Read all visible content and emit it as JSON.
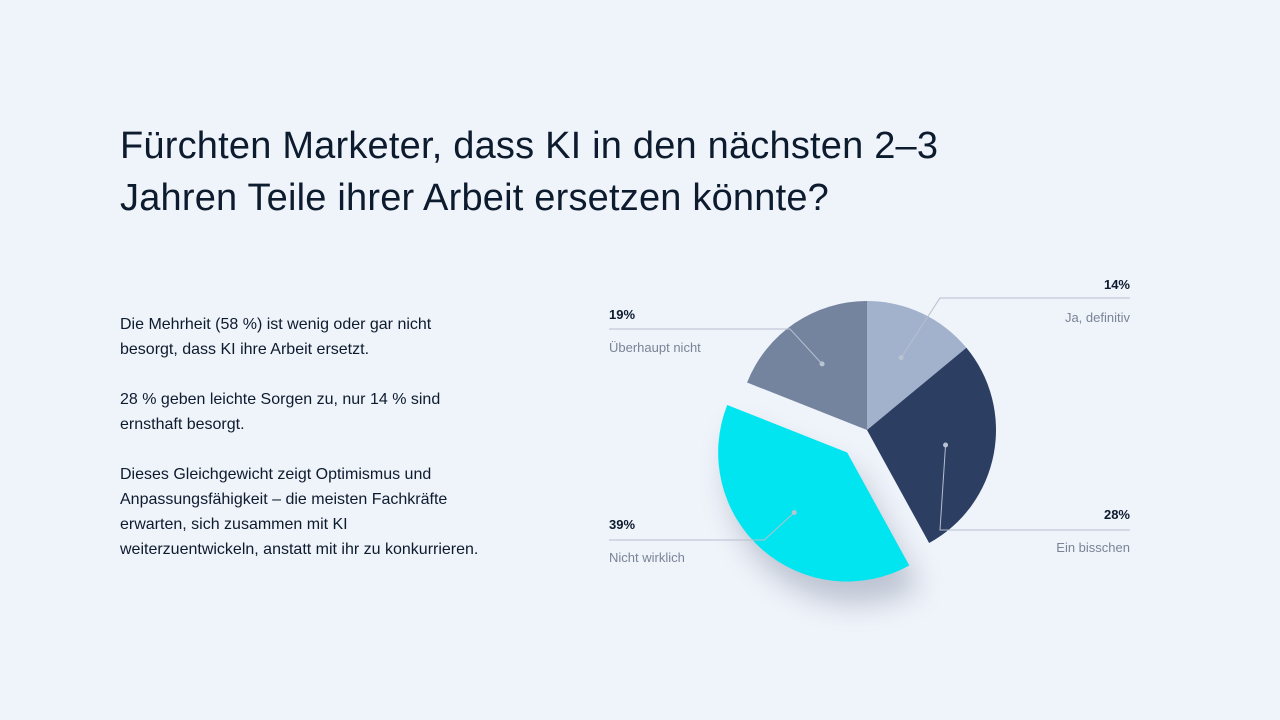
{
  "title": {
    "line1": "Fürchten Marketer, dass KI in den nächsten 2–3",
    "line2": "Jahren Teile ihrer Arbeit ersetzen könnte?"
  },
  "body": {
    "p1": "Die Mehrheit (58 %) ist wenig oder gar nicht besorgt, dass KI ihre Arbeit ersetzt.",
    "p2": "28 % geben leichte Sorgen zu, nur 14 % sind ernsthaft besorgt.",
    "p3": "Dieses Gleichgewicht zeigt Optimismus und Anpassungsfähigkeit – die meisten Fachkräfte erwarten, sich zusammen mit KI weiterzuentwickeln, anstatt mit ihr zu konkurrieren."
  },
  "chart_data": {
    "type": "pie",
    "title": "",
    "slices": [
      {
        "label": "Ja, definitiv",
        "value": 14,
        "value_label": "14%",
        "color": "#a3b2cc"
      },
      {
        "label": "Ein bisschen",
        "value": 28,
        "value_label": "28%",
        "color": "#2c3e62"
      },
      {
        "label": "Nicht wirklich",
        "value": 39,
        "value_label": "39%",
        "color": "#00e5ef",
        "exploded": true
      },
      {
        "label": "Überhaupt nicht",
        "value": 19,
        "value_label": "19%",
        "color": "#74849f"
      }
    ],
    "start": "12 o'clock",
    "direction": "clockwise",
    "legend": "none",
    "label_style": "callout lines"
  },
  "colors": {
    "background": "#eff3fa",
    "text": "#0d1b2e",
    "muted_text": "#7a8497",
    "leader_line": "#b6bfcd"
  }
}
